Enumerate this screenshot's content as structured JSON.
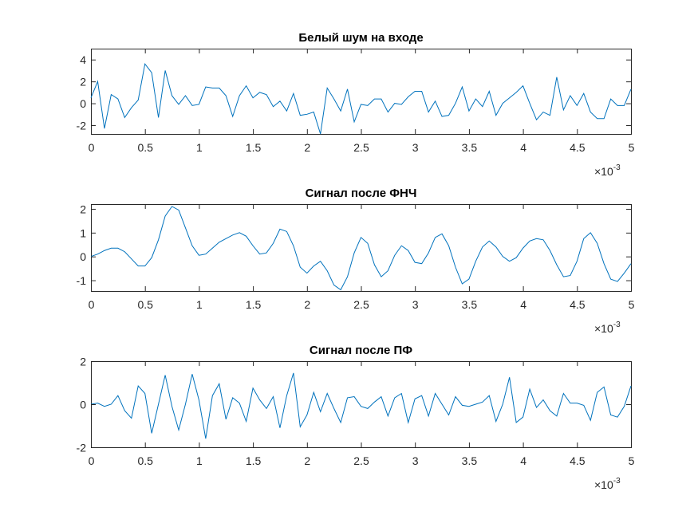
{
  "chart_data": [
    {
      "type": "line",
      "title": "Белый шум на входе",
      "xlim": [
        0,
        5
      ],
      "ylim": [
        -2.8,
        5
      ],
      "xticks": [
        "0",
        "0.5",
        "1",
        "1.5",
        "2",
        "2.5",
        "3",
        "3.5",
        "4",
        "4.5",
        "5"
      ],
      "yticks": [
        "-2",
        "0",
        "2",
        "4"
      ],
      "xtick_values": [
        0,
        0.5,
        1,
        1.5,
        2,
        2.5,
        3,
        3.5,
        4,
        4.5,
        5
      ],
      "ytick_values": [
        -2,
        0,
        2,
        4
      ],
      "x_multiplier_base": "×10",
      "x_multiplier_exp": "-3",
      "line_color": "#0072BD",
      "grid": false,
      "x": [
        0,
        0.0625,
        0.125,
        0.1875,
        0.25,
        0.3125,
        0.375,
        0.4375,
        0.5,
        0.5625,
        0.625,
        0.6875,
        0.75,
        0.8125,
        0.875,
        0.9375,
        1.0,
        1.0625,
        1.125,
        1.1875,
        1.25,
        1.3125,
        1.375,
        1.4375,
        1.5,
        1.5625,
        1.625,
        1.6875,
        1.75,
        1.8125,
        1.875,
        1.9375,
        2.0,
        2.0625,
        2.125,
        2.1875,
        2.25,
        2.3125,
        2.375,
        2.4375,
        2.5,
        2.5625,
        2.625,
        2.6875,
        2.75,
        2.8125,
        2.875,
        2.9375,
        3.0,
        3.0625,
        3.125,
        3.1875,
        3.25,
        3.3125,
        3.375,
        3.4375,
        3.5,
        3.5625,
        3.625,
        3.6875,
        3.75,
        3.8125,
        3.875,
        3.9375,
        4.0,
        4.0625,
        4.125,
        4.1875,
        4.25,
        4.3125,
        4.375,
        4.4375,
        4.5,
        4.5625,
        4.625,
        4.6875,
        4.75,
        4.8125,
        4.875,
        4.9375,
        5.0
      ],
      "y": [
        0.5,
        2.0,
        -2.3,
        0.8,
        0.4,
        -1.3,
        -0.4,
        0.3,
        3.6,
        2.8,
        -1.3,
        3.0,
        0.7,
        -0.1,
        0.7,
        -0.2,
        -0.1,
        1.5,
        1.4,
        1.4,
        0.7,
        -1.2,
        0.7,
        1.6,
        0.5,
        1.0,
        0.8,
        -0.3,
        0.2,
        -0.7,
        0.9,
        -1.1,
        -1.0,
        -0.8,
        -2.8,
        1.4,
        0.4,
        -0.7,
        1.3,
        -1.7,
        -0.1,
        -0.2,
        0.4,
        0.4,
        -0.8,
        0.0,
        -0.1,
        0.6,
        1.1,
        1.1,
        -0.8,
        0.2,
        -1.2,
        -1.1,
        0.0,
        1.5,
        -0.7,
        0.4,
        -0.3,
        1.1,
        -1.1,
        0.0,
        0.5,
        1.0,
        1.6,
        0.0,
        -1.5,
        -0.8,
        -1.1,
        2.4,
        -0.6,
        0.7,
        -0.2,
        0.9,
        -0.8,
        -1.4,
        -1.4,
        0.4,
        -0.2,
        -0.2,
        1.3
      ]
    },
    {
      "type": "line",
      "title": "Сигнал после ФНЧ",
      "xlim": [
        0,
        5
      ],
      "ylim": [
        -1.45,
        2.2
      ],
      "xticks": [
        "0",
        "0.5",
        "1",
        "1.5",
        "2",
        "2.5",
        "3",
        "3.5",
        "4",
        "4.5",
        "5"
      ],
      "yticks": [
        "-1",
        "0",
        "1",
        "2"
      ],
      "xtick_values": [
        0,
        0.5,
        1,
        1.5,
        2,
        2.5,
        3,
        3.5,
        4,
        4.5,
        5
      ],
      "ytick_values": [
        -1,
        0,
        1,
        2
      ],
      "x_multiplier_base": "×10",
      "x_multiplier_exp": "-3",
      "line_color": "#0072BD",
      "grid": false,
      "x": [
        0,
        0.0625,
        0.125,
        0.1875,
        0.25,
        0.3125,
        0.375,
        0.4375,
        0.5,
        0.5625,
        0.625,
        0.6875,
        0.75,
        0.8125,
        0.875,
        0.9375,
        1.0,
        1.0625,
        1.125,
        1.1875,
        1.25,
        1.3125,
        1.375,
        1.4375,
        1.5,
        1.5625,
        1.625,
        1.6875,
        1.75,
        1.8125,
        1.875,
        1.9375,
        2.0,
        2.0625,
        2.125,
        2.1875,
        2.25,
        2.3125,
        2.375,
        2.4375,
        2.5,
        2.5625,
        2.625,
        2.6875,
        2.75,
        2.8125,
        2.875,
        2.9375,
        3.0,
        3.0625,
        3.125,
        3.1875,
        3.25,
        3.3125,
        3.375,
        3.4375,
        3.5,
        3.5625,
        3.625,
        3.6875,
        3.75,
        3.8125,
        3.875,
        3.9375,
        4.0,
        4.0625,
        4.125,
        4.1875,
        4.25,
        4.3125,
        4.375,
        4.4375,
        4.5,
        4.5625,
        4.625,
        4.6875,
        4.75,
        4.8125,
        4.875,
        4.9375,
        5.0
      ],
      "y": [
        0.0,
        0.1,
        0.25,
        0.35,
        0.35,
        0.2,
        -0.1,
        -0.4,
        -0.4,
        -0.05,
        0.7,
        1.7,
        2.1,
        1.95,
        1.2,
        0.45,
        0.05,
        0.1,
        0.35,
        0.6,
        0.75,
        0.9,
        1.0,
        0.85,
        0.45,
        0.1,
        0.15,
        0.55,
        1.15,
        1.05,
        0.45,
        -0.45,
        -0.7,
        -0.4,
        -0.2,
        -0.6,
        -1.2,
        -1.4,
        -0.85,
        0.15,
        0.8,
        0.55,
        -0.35,
        -0.85,
        -0.6,
        0.05,
        0.45,
        0.25,
        -0.25,
        -0.3,
        0.15,
        0.8,
        0.95,
        0.45,
        -0.45,
        -1.15,
        -0.95,
        -0.2,
        0.4,
        0.65,
        0.4,
        0.0,
        -0.2,
        -0.05,
        0.35,
        0.65,
        0.75,
        0.7,
        0.25,
        -0.35,
        -0.85,
        -0.8,
        -0.2,
        0.75,
        1.0,
        0.55,
        -0.3,
        -0.95,
        -1.05,
        -0.7,
        -0.3
      ]
    },
    {
      "type": "line",
      "title": "Сигнал после ПФ",
      "xlim": [
        0,
        5
      ],
      "ylim": [
        -2,
        2
      ],
      "xticks": [
        "0",
        "0.5",
        "1",
        "1.5",
        "2",
        "2.5",
        "3",
        "3.5",
        "4",
        "4.5",
        "5"
      ],
      "yticks": [
        "-2",
        "0",
        "2"
      ],
      "xtick_values": [
        0,
        0.5,
        1,
        1.5,
        2,
        2.5,
        3,
        3.5,
        4,
        4.5,
        5
      ],
      "ytick_values": [
        -2,
        0,
        2
      ],
      "x_multiplier_base": "×10",
      "x_multiplier_exp": "-3",
      "line_color": "#0072BD",
      "grid": false,
      "x": [
        0,
        0.0625,
        0.125,
        0.1875,
        0.25,
        0.3125,
        0.375,
        0.4375,
        0.5,
        0.5625,
        0.625,
        0.6875,
        0.75,
        0.8125,
        0.875,
        0.9375,
        1.0,
        1.0625,
        1.125,
        1.1875,
        1.25,
        1.3125,
        1.375,
        1.4375,
        1.5,
        1.5625,
        1.625,
        1.6875,
        1.75,
        1.8125,
        1.875,
        1.9375,
        2.0,
        2.0625,
        2.125,
        2.1875,
        2.25,
        2.3125,
        2.375,
        2.4375,
        2.5,
        2.5625,
        2.625,
        2.6875,
        2.75,
        2.8125,
        2.875,
        2.9375,
        3.0,
        3.0625,
        3.125,
        3.1875,
        3.25,
        3.3125,
        3.375,
        3.4375,
        3.5,
        3.5625,
        3.625,
        3.6875,
        3.75,
        3.8125,
        3.875,
        3.9375,
        4.0,
        4.0625,
        4.125,
        4.1875,
        4.25,
        4.3125,
        4.375,
        4.4375,
        4.5,
        4.5625,
        4.625,
        4.6875,
        4.75,
        4.8125,
        4.875,
        4.9375,
        5.0
      ],
      "y": [
        0.0,
        0.05,
        -0.1,
        0.0,
        0.4,
        -0.3,
        -0.65,
        0.85,
        0.5,
        -1.35,
        0.0,
        1.35,
        -0.1,
        -1.2,
        0.0,
        1.4,
        0.2,
        -1.6,
        0.4,
        0.95,
        -0.7,
        0.3,
        0.05,
        -0.8,
        0.75,
        0.2,
        -0.2,
        0.35,
        -1.1,
        0.4,
        1.45,
        -1.05,
        -0.5,
        0.55,
        -0.35,
        0.5,
        -0.2,
        -0.85,
        0.3,
        0.35,
        -0.1,
        -0.2,
        0.1,
        0.35,
        -0.55,
        0.3,
        0.5,
        -0.85,
        0.25,
        0.4,
        -0.55,
        0.5,
        0.0,
        -0.5,
        0.35,
        -0.05,
        -0.1,
        0.0,
        0.1,
        0.4,
        -0.8,
        0.0,
        1.25,
        -0.85,
        -0.6,
        0.7,
        -0.15,
        0.2,
        -0.3,
        -0.55,
        0.5,
        0.05,
        0.05,
        -0.05,
        -0.75,
        0.55,
        0.8,
        -0.5,
        -0.6,
        -0.1,
        0.85
      ]
    }
  ]
}
